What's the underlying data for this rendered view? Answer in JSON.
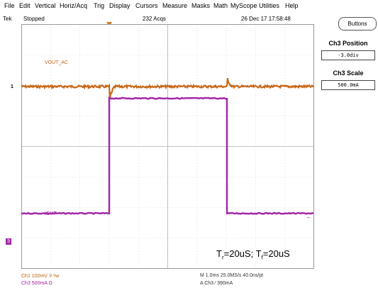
{
  "menu": [
    "File",
    "Edit",
    "Vertical",
    "Horiz/Acq",
    "Trig",
    "Display",
    "Cursors",
    "Measure",
    "Masks",
    "Math",
    "MyScope",
    "Utilities",
    "Help"
  ],
  "status": {
    "brand": "Tek",
    "run_state": "Stopped",
    "acqs": "232 Acqs",
    "datetime": "26 Dec 17  17:58:48"
  },
  "buttons_label": "Buttons",
  "side_panel": {
    "pos_label": "Ch3 Position",
    "pos_value": "-3.0div",
    "scale_label": "Ch3 Scale",
    "scale_value": "500.0mA"
  },
  "channels": {
    "ch1_marker": "1",
    "ch3_marker": "3",
    "ch1_name": "VOUT_AC",
    "ch3_name": "IOUT",
    "ch1_color": "#c8691a",
    "ch3_color": "#a329a8"
  },
  "legend": {
    "ch1": "Ch1      100mV  ⅌  ᵇw",
    "ch3": "Ch3      500mA  Ω",
    "timebase": "M 1.0ms 25.0MS/s     40.0ns/pt",
    "trigger": "A  Ch3   ⁄  390mA"
  },
  "timing": {
    "tr_prefix": "T",
    "tr_sub": "r",
    "tr_value": "=20uS; ",
    "tf_prefix": "T",
    "tf_sub": "f",
    "tf_value": "=20uS"
  },
  "waveforms": {
    "ch3_low_current_div": 0,
    "ch3_high_current_div": 4.0,
    "step_up_time_div": 3.0,
    "step_down_time_div": 7.0
  }
}
